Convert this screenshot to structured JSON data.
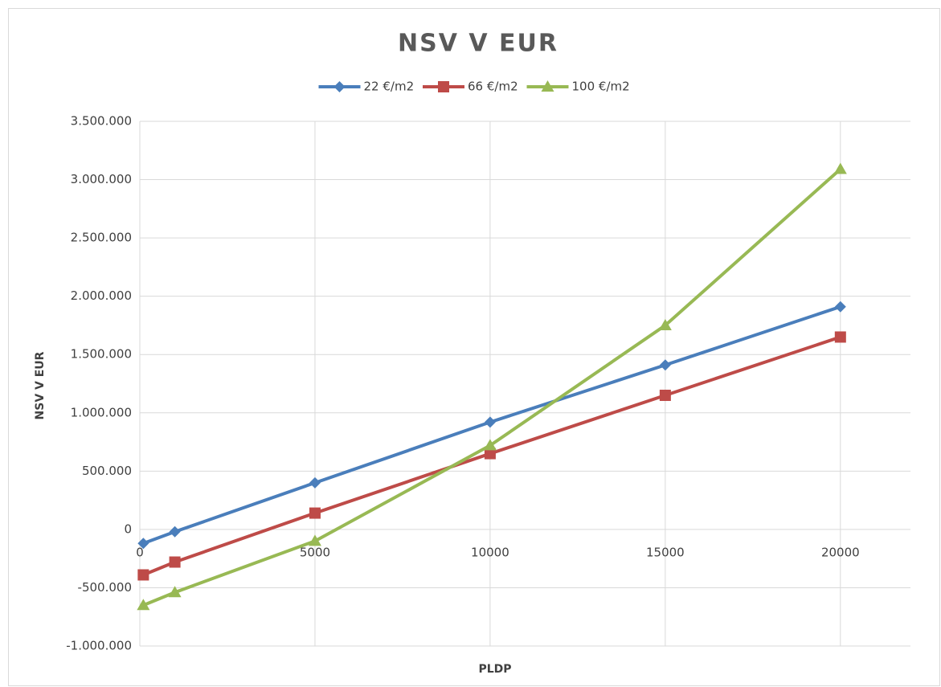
{
  "chart_data": {
    "type": "line",
    "title": "NSV V EUR",
    "x_label": "PLDP",
    "y_label": "NSV V EUR",
    "x": [
      100,
      1000,
      5000,
      10000,
      15000,
      20000
    ],
    "series": [
      {
        "name": "22 €/m2",
        "color": "#4a7ebb",
        "marker": "diamond",
        "values": [
          -120000,
          -20000,
          400000,
          920000,
          1410000,
          1910000
        ]
      },
      {
        "name": "66 €/m2",
        "color": "#be4b48",
        "marker": "square",
        "values": [
          -390000,
          -280000,
          140000,
          650000,
          1150000,
          1650000
        ]
      },
      {
        "name": "100 €/m2",
        "color": "#98b954",
        "marker": "triangle",
        "values": [
          -650000,
          -540000,
          -100000,
          720000,
          1750000,
          3090000
        ]
      }
    ],
    "xlim": [
      0,
      22000
    ],
    "xticks": [
      0,
      5000,
      10000,
      15000,
      20000
    ],
    "ylim": [
      -1000000,
      3500000
    ],
    "yticks": [
      {
        "value": -1000000,
        "label": "-1.000.000"
      },
      {
        "value": -500000,
        "label": "-500.000"
      },
      0,
      {
        "value": 500000,
        "label": "500.000"
      },
      {
        "value": 1000000,
        "label": "1.000.000"
      },
      {
        "value": 1500000,
        "label": "1.500.000"
      },
      {
        "value": 2000000,
        "label": "2.000.000"
      },
      {
        "value": 2500000,
        "label": "2.500.000"
      },
      {
        "value": 3000000,
        "label": "3.000.000"
      },
      {
        "value": 3500000,
        "label": "3.500.000"
      }
    ],
    "grid": true,
    "legend": "top"
  }
}
